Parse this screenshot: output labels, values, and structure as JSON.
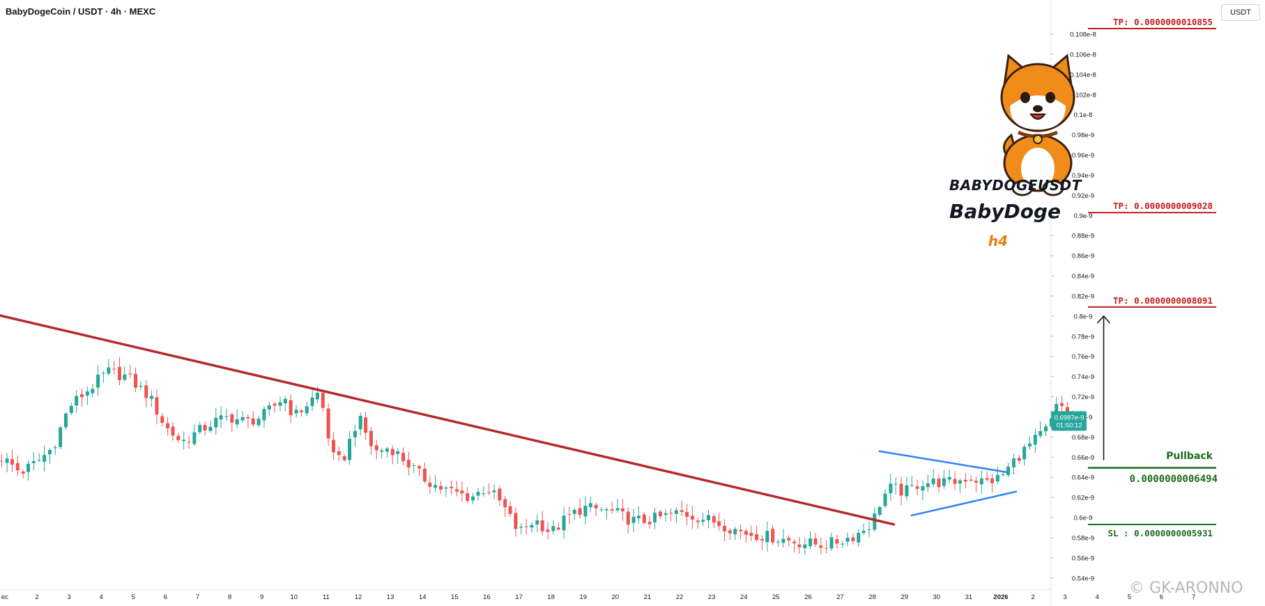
{
  "header": {
    "symbol_title": "BabyDogeCoin / USDT · 4h · MEXC",
    "currency": "USDT"
  },
  "watermark": {
    "symbol": "BABYDOGEUSDT",
    "name": "BabyDoge",
    "timeframe": "h4",
    "credit": "GK-ARONNO",
    "timeframe_color": "#e67e12"
  },
  "colors": {
    "up": "#26a69a",
    "down": "#ef5350",
    "trendline": "#b22b2b",
    "triangle": "#2f7fff",
    "tp": "#c21b1b",
    "entry": "#1b6b1b"
  },
  "levels": {
    "tp3": "TP: 0.0000000010855",
    "tp2": "TP: 0.0000000009028",
    "tp1": "TP: 0.0000000008091",
    "pullback": "Pullback",
    "entry": "0.0000000006494",
    "sl": "SL : 0.0000000005931"
  },
  "price_label": {
    "value": "0.6987e-9",
    "countdown": "01:50:12"
  },
  "chart_data": {
    "type": "candlestick",
    "title": "BabyDogeCoin / USDT · 4h · MEXC",
    "y_tick_labels": [
      "0.108e-8",
      "0.106e-8",
      "0.104e-8",
      "0.102e-8",
      "0.1e-8",
      "0.98e-9",
      "0.96e-9",
      "0.94e-9",
      "0.92e-9",
      "0.9e-9",
      "0.88e-9",
      "0.86e-9",
      "0.84e-9",
      "0.82e-9",
      "0.8e-9",
      "0.78e-9",
      "0.76e-9",
      "0.74e-9",
      "0.72e-9",
      "0.7e-9",
      "0.68e-9",
      "0.66e-9",
      "0.64e-9",
      "0.62e-9",
      "0.6e-9",
      "0.58e-9",
      "0.56e-9",
      "0.54e-9"
    ],
    "y_tick_values": [
      1.08,
      1.06,
      1.04,
      1.02,
      1.0,
      0.98,
      0.96,
      0.94,
      0.92,
      0.9,
      0.88,
      0.86,
      0.84,
      0.82,
      0.8,
      0.78,
      0.76,
      0.74,
      0.72,
      0.7,
      0.68,
      0.66,
      0.64,
      0.62,
      0.6,
      0.58,
      0.56,
      0.54
    ],
    "y_unit": "1e-9 USDT",
    "x_tick_labels": [
      "ec",
      "2",
      "3",
      "4",
      "5",
      "6",
      "7",
      "8",
      "9",
      "10",
      "11",
      "12",
      "13",
      "14",
      "15",
      "16",
      "17",
      "18",
      "19",
      "20",
      "21",
      "22",
      "23",
      "24",
      "25",
      "26",
      "27",
      "28",
      "29",
      "30",
      "31",
      "2026",
      "2",
      "3",
      "4",
      "5",
      "6",
      "7"
    ],
    "x_tick_days": [
      1,
      2,
      3,
      4,
      5,
      6,
      7,
      8,
      9,
      10,
      11,
      12,
      13,
      14,
      15,
      16,
      17,
      18,
      19,
      20,
      21,
      22,
      23,
      24,
      25,
      26,
      27,
      28,
      29,
      30,
      31,
      32,
      33,
      34,
      35,
      36,
      37,
      38
    ],
    "ohlc_day_offsets": [
      0.9,
      1.07,
      1.23,
      1.4,
      1.57,
      1.73,
      1.9,
      2.07,
      2.23,
      2.4,
      2.57,
      2.73,
      2.9,
      3.07,
      3.23,
      3.4,
      3.57,
      3.73,
      3.9,
      4.07,
      4.23,
      4.4,
      4.57,
      4.73,
      4.9,
      5.07,
      5.23,
      5.4,
      5.57,
      5.73,
      5.9,
      6.07,
      6.23,
      6.4,
      6.57,
      6.73,
      6.9,
      7.07,
      7.23,
      7.4,
      7.57,
      7.73,
      7.9,
      8.07,
      8.23,
      8.4,
      8.57,
      8.73,
      8.9,
      9.07,
      9.23,
      9.4,
      9.57,
      9.73,
      9.9,
      10.07,
      10.23,
      10.4,
      10.57,
      10.73,
      10.9,
      11.07,
      11.23,
      11.4,
      11.57,
      11.73,
      11.9,
      12.07,
      12.23,
      12.4,
      12.57,
      12.73,
      12.9,
      13.07,
      13.23,
      13.4,
      13.57,
      13.73,
      13.9,
      14.07,
      14.23,
      14.4,
      14.57,
      14.73,
      14.9,
      15.07,
      15.23,
      15.4,
      15.57,
      15.73,
      15.9,
      16.07,
      16.23,
      16.4,
      16.57,
      16.73,
      16.9,
      17.07,
      17.23,
      17.4,
      17.57,
      17.73,
      17.9,
      18.07,
      18.23,
      18.4,
      18.57,
      18.73,
      18.9,
      19.07,
      19.23,
      19.4,
      19.57,
      19.73,
      19.9,
      20.07,
      20.23,
      20.4,
      20.57,
      20.73,
      20.9,
      21.07,
      21.23,
      21.4,
      21.57,
      21.73,
      21.9,
      22.07,
      22.23,
      22.4,
      22.57,
      22.73,
      22.9,
      23.07,
      23.23,
      23.4,
      23.57,
      23.73,
      23.9,
      24.07,
      24.23,
      24.4,
      24.57,
      24.73,
      24.9,
      25.07,
      25.23,
      25.4,
      25.57,
      25.73,
      25.9,
      26.07,
      26.23,
      26.4,
      26.57,
      26.73,
      26.9,
      27.07,
      27.23,
      27.4,
      27.57,
      27.73,
      27.9,
      28.07,
      28.23,
      28.4,
      28.57,
      28.73,
      28.9,
      29.07,
      29.23,
      29.4,
      29.57,
      29.73,
      29.9,
      30.07,
      30.23,
      30.4,
      30.57,
      30.73,
      30.9,
      31.07,
      31.23,
      31.4,
      31.57,
      31.73,
      31.9,
      32.07,
      32.23,
      32.4,
      32.57,
      32.73,
      32.9,
      33.07,
      33.23,
      33.4,
      33.57,
      33.73,
      33.9,
      34.07,
      34.23,
      34.4
    ],
    "ohlc_anchor_days": [
      0.9,
      1.5,
      2.0,
      2.5,
      3.0,
      3.7,
      4.2,
      4.8,
      5.5,
      6.0,
      6.5,
      7.0,
      7.5,
      8.0,
      8.5,
      9.0,
      9.7,
      10.0,
      10.8,
      11.2,
      11.5,
      12.0,
      12.5,
      13.0,
      13.5,
      14.0,
      14.5,
      15.0,
      15.5,
      16.0,
      16.5,
      17.0,
      17.5,
      18.0,
      18.5,
      19.0,
      19.5,
      20.0,
      20.5,
      21.0,
      22.0,
      23.0,
      24.0,
      25.0,
      25.8,
      26.5,
      27.0,
      27.5,
      28.0,
      28.3,
      28.6,
      29.0,
      29.5,
      30.0,
      30.5,
      31.0,
      31.5,
      32.0,
      32.5,
      33.0,
      33.5,
      33.8,
      34.0,
      34.2,
      34.4
    ],
    "ohlc_anchor_close": [
      0.66,
      0.645,
      0.655,
      0.67,
      0.71,
      0.73,
      0.745,
      0.74,
      0.72,
      0.69,
      0.675,
      0.685,
      0.695,
      0.7,
      0.695,
      0.7,
      0.72,
      0.7,
      0.725,
      0.66,
      0.655,
      0.7,
      0.665,
      0.67,
      0.655,
      0.64,
      0.63,
      0.625,
      0.62,
      0.63,
      0.612,
      0.585,
      0.598,
      0.585,
      0.6,
      0.61,
      0.608,
      0.605,
      0.597,
      0.597,
      0.605,
      0.597,
      0.585,
      0.58,
      0.575,
      0.573,
      0.577,
      0.583,
      0.595,
      0.62,
      0.63,
      0.625,
      0.635,
      0.635,
      0.635,
      0.64,
      0.635,
      0.64,
      0.66,
      0.675,
      0.69,
      0.715,
      0.705,
      0.69,
      0.6987
    ],
    "last_price": 0.6987,
    "annotations": {
      "trendline": {
        "from_day": 0.0,
        "from_price": 0.807,
        "to_day": 28.7,
        "to_price": 0.593
      },
      "triangle_upper": {
        "from_day": 28.2,
        "from_price": 0.666,
        "to_day": 32.2,
        "to_price": 0.645
      },
      "triangle_lower": {
        "from_day": 29.2,
        "from_price": 0.602,
        "to_day": 32.5,
        "to_price": 0.626
      },
      "tp_levels": [
        1.0855,
        0.9028,
        0.8091
      ],
      "entry_level": 0.6494,
      "sl_level": 0.5931,
      "arrow": {
        "day": 35.2,
        "from_price": 0.657,
        "to_price": 0.8
      }
    }
  }
}
